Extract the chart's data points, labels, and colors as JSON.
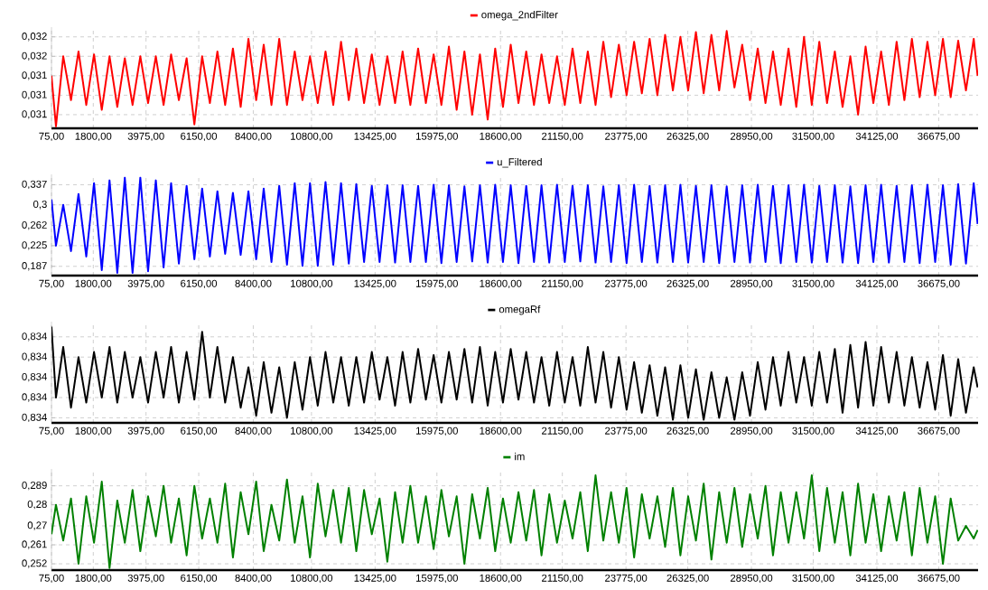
{
  "chart_data": [
    {
      "type": "line",
      "legend": "top",
      "grid": true,
      "x": [
        75,
        260,
        560,
        880,
        1190,
        1510,
        1830,
        2150,
        2470,
        2790,
        3100,
        3420,
        3740,
        4060,
        4380,
        4700,
        5010,
        5330,
        5650,
        5970,
        6290,
        6610,
        6920,
        7240,
        7560,
        7880,
        8200,
        8520,
        8830,
        9150,
        9470,
        9790,
        10110,
        10430,
        10740,
        11060,
        11380,
        11700,
        12020,
        12340,
        12650,
        12970,
        13290,
        13610,
        13930,
        14250,
        14560,
        14880,
        15200,
        15520,
        15840,
        16160,
        16470,
        16790,
        17110,
        17430,
        17750,
        18070,
        18380,
        18700,
        19020,
        19340,
        19660,
        19980,
        20290,
        20610,
        20930,
        21250,
        21570,
        21890,
        22200,
        22520,
        22840,
        23160,
        23480,
        23800,
        24110,
        24430,
        24750,
        25070,
        25390,
        25710,
        26020,
        26340,
        26660,
        26980,
        27300,
        27620,
        27930,
        28250,
        28570,
        28890,
        29210,
        29530,
        29840,
        30160,
        30480,
        30800,
        31120,
        31440,
        31750,
        32070,
        32390,
        32710,
        33030,
        33350,
        33660,
        33980,
        34300,
        34620,
        34940,
        35260,
        35570,
        35890,
        36210,
        36530,
        36850,
        37170,
        37480,
        37800,
        38120,
        38280
      ],
      "xlim": [
        75,
        38300
      ],
      "xticks": [
        {
          "value": 75,
          "label": "75,00"
        },
        {
          "value": 1800,
          "label": "1800,00"
        },
        {
          "value": 3975,
          "label": "3975,00"
        },
        {
          "value": 6150,
          "label": "6150,00"
        },
        {
          "value": 8400,
          "label": "8400,00"
        },
        {
          "value": 10800,
          "label": "10800,00"
        },
        {
          "value": 13425,
          "label": "13425,00"
        },
        {
          "value": 15975,
          "label": "15975,00"
        },
        {
          "value": 18600,
          "label": "18600,00"
        },
        {
          "value": 21150,
          "label": "21150,00"
        },
        {
          "value": 23775,
          "label": "23775,00"
        },
        {
          "value": 26325,
          "label": "26325,00"
        },
        {
          "value": 28950,
          "label": "28950,00"
        },
        {
          "value": 31500,
          "label": "31500,00"
        },
        {
          "value": 34125,
          "label": "34125,00"
        },
        {
          "value": 36675,
          "label": "36675,00"
        }
      ],
      "ylim": [
        0.03086,
        0.0319
      ],
      "yticks": [
        {
          "value": 0.031,
          "label": "0,031"
        },
        {
          "value": 0.0312,
          "label": "0,031"
        },
        {
          "value": 0.0314,
          "label": "0,031"
        },
        {
          "value": 0.0316,
          "label": "0,032"
        },
        {
          "value": 0.0318,
          "label": "0,032"
        }
      ],
      "series": [
        {
          "name": "omega_2ndFilter",
          "color": "#ff0000",
          "values": [
            0.0314,
            0.03088,
            0.0316,
            0.03115,
            0.03165,
            0.0311,
            0.03162,
            0.03105,
            0.0316,
            0.03108,
            0.03158,
            0.0311,
            0.0316,
            0.03112,
            0.0316,
            0.0311,
            0.03162,
            0.03115,
            0.03158,
            0.0309,
            0.0316,
            0.03112,
            0.03165,
            0.0311,
            0.03168,
            0.03108,
            0.03178,
            0.03115,
            0.03172,
            0.0311,
            0.03178,
            0.0311,
            0.03165,
            0.03115,
            0.0316,
            0.03112,
            0.03165,
            0.0311,
            0.03175,
            0.03115,
            0.03168,
            0.03112,
            0.03162,
            0.0311,
            0.0316,
            0.03112,
            0.03165,
            0.0311,
            0.03168,
            0.03112,
            0.03162,
            0.0311,
            0.0317,
            0.03105,
            0.03165,
            0.031,
            0.03162,
            0.03095,
            0.03168,
            0.03108,
            0.03172,
            0.03112,
            0.03165,
            0.0311,
            0.03162,
            0.03112,
            0.0316,
            0.0311,
            0.03168,
            0.03112,
            0.03165,
            0.0311,
            0.03175,
            0.03118,
            0.03172,
            0.0312,
            0.03175,
            0.03122,
            0.03178,
            0.0312,
            0.03182,
            0.03125,
            0.0318,
            0.03125,
            0.03185,
            0.03122,
            0.03182,
            0.03125,
            0.03186,
            0.03128,
            0.03172,
            0.03115,
            0.03168,
            0.03112,
            0.03165,
            0.0311,
            0.03168,
            0.03108,
            0.0318,
            0.0311,
            0.03175,
            0.03112,
            0.03165,
            0.03108,
            0.0316,
            0.031,
            0.0317,
            0.03112,
            0.03165,
            0.0311,
            0.03175,
            0.03115,
            0.03178,
            0.03118,
            0.03175,
            0.0312,
            0.03178,
            0.03118,
            0.03176,
            0.03125,
            0.03178,
            0.0314
          ]
        }
      ]
    },
    {
      "type": "line",
      "legend": "top",
      "grid": true,
      "x": [
        75,
        260,
        560,
        880,
        1190,
        1510,
        1830,
        2150,
        2470,
        2790,
        3100,
        3420,
        3740,
        4060,
        4380,
        4700,
        5010,
        5330,
        5650,
        5970,
        6290,
        6610,
        6920,
        7240,
        7560,
        7880,
        8200,
        8520,
        8830,
        9150,
        9470,
        9790,
        10110,
        10430,
        10740,
        11060,
        11380,
        11700,
        12020,
        12340,
        12650,
        12970,
        13290,
        13610,
        13930,
        14250,
        14560,
        14880,
        15200,
        15520,
        15840,
        16160,
        16470,
        16790,
        17110,
        17430,
        17750,
        18070,
        18380,
        18700,
        19020,
        19340,
        19660,
        19980,
        20290,
        20610,
        20930,
        21250,
        21570,
        21890,
        22200,
        22520,
        22840,
        23160,
        23480,
        23800,
        24110,
        24430,
        24750,
        25070,
        25390,
        25710,
        26020,
        26340,
        26660,
        26980,
        27300,
        27620,
        27930,
        28250,
        28570,
        28890,
        29210,
        29530,
        29840,
        30160,
        30480,
        30800,
        31120,
        31440,
        31750,
        32070,
        32390,
        32710,
        33030,
        33350,
        33660,
        33980,
        34300,
        34620,
        34940,
        35260,
        35570,
        35890,
        36210,
        36530,
        36850,
        37170,
        37480,
        37800,
        38120,
        38280
      ],
      "xlim": [
        75,
        38300
      ],
      "xticks": [
        {
          "value": 75,
          "label": "75,00"
        },
        {
          "value": 1800,
          "label": "1800,00"
        },
        {
          "value": 3975,
          "label": "3975,00"
        },
        {
          "value": 6150,
          "label": "6150,00"
        },
        {
          "value": 8400,
          "label": "8400,00"
        },
        {
          "value": 10800,
          "label": "10800,00"
        },
        {
          "value": 13425,
          "label": "13425,00"
        },
        {
          "value": 15975,
          "label": "15975,00"
        },
        {
          "value": 18600,
          "label": "18600,00"
        },
        {
          "value": 21150,
          "label": "21150,00"
        },
        {
          "value": 23775,
          "label": "23775,00"
        },
        {
          "value": 26325,
          "label": "26325,00"
        },
        {
          "value": 28950,
          "label": "28950,00"
        },
        {
          "value": 31500,
          "label": "31500,00"
        },
        {
          "value": 34125,
          "label": "34125,00"
        },
        {
          "value": 36675,
          "label": "36675,00"
        }
      ],
      "ylim": [
        0.17,
        0.356
      ],
      "yticks": [
        {
          "value": 0.187,
          "label": "0,187"
        },
        {
          "value": 0.225,
          "label": "0,225"
        },
        {
          "value": 0.262,
          "label": "0,262"
        },
        {
          "value": 0.3,
          "label": "0,3"
        },
        {
          "value": 0.337,
          "label": "0,337"
        }
      ],
      "series": [
        {
          "name": "u_Filtered",
          "color": "#0000ff",
          "values": [
            0.31,
            0.225,
            0.3,
            0.215,
            0.32,
            0.205,
            0.34,
            0.18,
            0.345,
            0.175,
            0.35,
            0.175,
            0.35,
            0.178,
            0.345,
            0.185,
            0.34,
            0.192,
            0.335,
            0.2,
            0.33,
            0.205,
            0.325,
            0.21,
            0.322,
            0.208,
            0.325,
            0.2,
            0.33,
            0.195,
            0.335,
            0.19,
            0.34,
            0.188,
            0.34,
            0.188,
            0.342,
            0.19,
            0.34,
            0.192,
            0.338,
            0.195,
            0.335,
            0.195,
            0.336,
            0.194,
            0.336,
            0.195,
            0.335,
            0.195,
            0.337,
            0.193,
            0.336,
            0.195,
            0.334,
            0.196,
            0.336,
            0.194,
            0.337,
            0.195,
            0.336,
            0.193,
            0.335,
            0.195,
            0.336,
            0.194,
            0.337,
            0.195,
            0.335,
            0.196,
            0.336,
            0.194,
            0.334,
            0.195,
            0.336,
            0.193,
            0.337,
            0.195,
            0.335,
            0.194,
            0.336,
            0.195,
            0.337,
            0.194,
            0.335,
            0.195,
            0.336,
            0.193,
            0.334,
            0.195,
            0.336,
            0.194,
            0.337,
            0.195,
            0.335,
            0.193,
            0.336,
            0.195,
            0.337,
            0.194,
            0.335,
            0.195,
            0.336,
            0.194,
            0.334,
            0.193,
            0.336,
            0.195,
            0.337,
            0.194,
            0.335,
            0.195,
            0.336,
            0.193,
            0.337,
            0.195,
            0.336,
            0.19,
            0.338,
            0.192,
            0.34,
            0.265
          ]
        }
      ]
    },
    {
      "type": "line",
      "legend": "top",
      "grid": true,
      "x": [
        75,
        260,
        560,
        880,
        1190,
        1510,
        1830,
        2150,
        2470,
        2790,
        3100,
        3420,
        3740,
        4060,
        4380,
        4700,
        5010,
        5330,
        5650,
        5970,
        6290,
        6610,
        6920,
        7240,
        7560,
        7880,
        8200,
        8520,
        8830,
        9150,
        9470,
        9790,
        10110,
        10430,
        10740,
        11060,
        11380,
        11700,
        12020,
        12340,
        12650,
        12970,
        13290,
        13610,
        13930,
        14250,
        14560,
        14880,
        15200,
        15520,
        15840,
        16160,
        16470,
        16790,
        17110,
        17430,
        17750,
        18070,
        18380,
        18700,
        19020,
        19340,
        19660,
        19980,
        20290,
        20610,
        20930,
        21250,
        21570,
        21890,
        22200,
        22520,
        22840,
        23160,
        23480,
        23800,
        24110,
        24430,
        24750,
        25070,
        25390,
        25710,
        26020,
        26340,
        26660,
        26980,
        27300,
        27620,
        27930,
        28250,
        28570,
        28890,
        29210,
        29530,
        29840,
        30160,
        30480,
        30800,
        31120,
        31440,
        31750,
        32070,
        32390,
        32710,
        33030,
        33350,
        33660,
        33980,
        34300,
        34620,
        34940,
        35260,
        35570,
        35890,
        36210,
        36530,
        36850,
        37170,
        37480,
        37800,
        38120,
        38280
      ],
      "xlim": [
        75,
        38300
      ],
      "xticks": [
        {
          "value": 75,
          "label": "75,00"
        },
        {
          "value": 1800,
          "label": "1800,00"
        },
        {
          "value": 3975,
          "label": "3975,00"
        },
        {
          "value": 6150,
          "label": "6150,00"
        },
        {
          "value": 8400,
          "label": "8400,00"
        },
        {
          "value": 10800,
          "label": "10800,00"
        },
        {
          "value": 13425,
          "label": "13425,00"
        },
        {
          "value": 15975,
          "label": "15975,00"
        },
        {
          "value": 18600,
          "label": "18600,00"
        },
        {
          "value": 21150,
          "label": "21150,00"
        },
        {
          "value": 23775,
          "label": "23775,00"
        },
        {
          "value": 26325,
          "label": "26325,00"
        },
        {
          "value": 28950,
          "label": "28950,00"
        },
        {
          "value": 31500,
          "label": "31500,00"
        },
        {
          "value": 34125,
          "label": "34125,00"
        },
        {
          "value": 36675,
          "label": "36675,00"
        }
      ],
      "ylim": [
        0.83355,
        0.83455
      ],
      "yticks": [
        {
          "value": 0.8336,
          "label": "0,834"
        },
        {
          "value": 0.8338,
          "label": "0,834"
        },
        {
          "value": 0.834,
          "label": "0,834"
        },
        {
          "value": 0.8342,
          "label": "0,834"
        },
        {
          "value": 0.8344,
          "label": "0,834"
        }
      ],
      "series": [
        {
          "name": "omegaRf",
          "color": "#000000",
          "values": [
            0.8345,
            0.8338,
            0.8343,
            0.8337,
            0.8342,
            0.83375,
            0.83425,
            0.8338,
            0.8343,
            0.83375,
            0.83425,
            0.8338,
            0.8342,
            0.83375,
            0.83425,
            0.8338,
            0.8343,
            0.83375,
            0.83425,
            0.83378,
            0.83445,
            0.8338,
            0.8343,
            0.83375,
            0.8342,
            0.8337,
            0.8341,
            0.83362,
            0.83415,
            0.83365,
            0.8341,
            0.8336,
            0.83415,
            0.83368,
            0.8342,
            0.83372,
            0.83425,
            0.83375,
            0.8342,
            0.83372,
            0.8342,
            0.83375,
            0.83425,
            0.83378,
            0.8342,
            0.83372,
            0.83425,
            0.83375,
            0.83428,
            0.83378,
            0.83422,
            0.83375,
            0.83425,
            0.83378,
            0.83428,
            0.83375,
            0.8343,
            0.83372,
            0.83425,
            0.83375,
            0.83428,
            0.83378,
            0.83425,
            0.83375,
            0.8342,
            0.83372,
            0.83425,
            0.83375,
            0.8342,
            0.83372,
            0.8343,
            0.83375,
            0.83425,
            0.8337,
            0.8342,
            0.83368,
            0.83415,
            0.83365,
            0.83412,
            0.83362,
            0.8341,
            0.83358,
            0.83412,
            0.8336,
            0.83408,
            0.83358,
            0.83405,
            0.8336,
            0.834,
            0.83358,
            0.83405,
            0.83362,
            0.83415,
            0.83368,
            0.8342,
            0.83372,
            0.83425,
            0.83375,
            0.8342,
            0.83372,
            0.83425,
            0.83375,
            0.83428,
            0.83365,
            0.83432,
            0.8337,
            0.83435,
            0.83372,
            0.8343,
            0.83375,
            0.83425,
            0.83372,
            0.8342,
            0.8337,
            0.83415,
            0.83368,
            0.83422,
            0.83362,
            0.83418,
            0.83365,
            0.8341,
            0.8339
          ]
        }
      ]
    },
    {
      "type": "line",
      "legend": "top",
      "grid": true,
      "x": [
        75,
        260,
        560,
        880,
        1190,
        1510,
        1830,
        2150,
        2470,
        2790,
        3100,
        3420,
        3740,
        4060,
        4380,
        4700,
        5010,
        5330,
        5650,
        5970,
        6290,
        6610,
        6920,
        7240,
        7560,
        7880,
        8200,
        8520,
        8830,
        9150,
        9470,
        9790,
        10110,
        10430,
        10740,
        11060,
        11380,
        11700,
        12020,
        12340,
        12650,
        12970,
        13290,
        13610,
        13930,
        14250,
        14560,
        14880,
        15200,
        15520,
        15840,
        16160,
        16470,
        16790,
        17110,
        17430,
        17750,
        18070,
        18380,
        18700,
        19020,
        19340,
        19660,
        19980,
        20290,
        20610,
        20930,
        21250,
        21570,
        21890,
        22200,
        22520,
        22840,
        23160,
        23480,
        23800,
        24110,
        24430,
        24750,
        25070,
        25390,
        25710,
        26020,
        26340,
        26660,
        26980,
        27300,
        27620,
        27930,
        28250,
        28570,
        28890,
        29210,
        29530,
        29840,
        30160,
        30480,
        30800,
        31120,
        31440,
        31750,
        32070,
        32390,
        32710,
        33030,
        33350,
        33660,
        33980,
        34300,
        34620,
        34940,
        35260,
        35570,
        35890,
        36210,
        36530,
        36850,
        37170,
        37480,
        37800,
        38120,
        38280
      ],
      "xlim": [
        75,
        38300
      ],
      "xticks": [
        {
          "value": 75,
          "label": "75,00"
        },
        {
          "value": 1800,
          "label": "1800,00"
        },
        {
          "value": 3975,
          "label": "3975,00"
        },
        {
          "value": 6150,
          "label": "6150,00"
        },
        {
          "value": 8400,
          "label": "8400,00"
        },
        {
          "value": 10800,
          "label": "10800,00"
        },
        {
          "value": 13425,
          "label": "13425,00"
        },
        {
          "value": 15975,
          "label": "15975,00"
        },
        {
          "value": 18600,
          "label": "18600,00"
        },
        {
          "value": 21150,
          "label": "21150,00"
        },
        {
          "value": 23775,
          "label": "23775,00"
        },
        {
          "value": 26325,
          "label": "26325,00"
        },
        {
          "value": 28950,
          "label": "28950,00"
        },
        {
          "value": 31500,
          "label": "31500,00"
        },
        {
          "value": 34125,
          "label": "34125,00"
        },
        {
          "value": 36675,
          "label": "36675,00"
        }
      ],
      "ylim": [
        0.249,
        0.297
      ],
      "yticks": [
        {
          "value": 0.252,
          "label": "0,252"
        },
        {
          "value": 0.261,
          "label": "0,261"
        },
        {
          "value": 0.27,
          "label": "0,27"
        },
        {
          "value": 0.28,
          "label": "0,28"
        },
        {
          "value": 0.289,
          "label": "0,289"
        }
      ],
      "series": [
        {
          "name": "im",
          "color": "#008000",
          "values": [
            0.266,
            0.28,
            0.263,
            0.283,
            0.252,
            0.284,
            0.262,
            0.291,
            0.25,
            0.282,
            0.262,
            0.287,
            0.258,
            0.284,
            0.265,
            0.289,
            0.262,
            0.283,
            0.256,
            0.289,
            0.264,
            0.283,
            0.262,
            0.29,
            0.255,
            0.286,
            0.266,
            0.291,
            0.258,
            0.28,
            0.263,
            0.292,
            0.262,
            0.284,
            0.255,
            0.29,
            0.265,
            0.287,
            0.262,
            0.288,
            0.258,
            0.287,
            0.266,
            0.283,
            0.253,
            0.286,
            0.262,
            0.289,
            0.262,
            0.284,
            0.259,
            0.287,
            0.265,
            0.284,
            0.252,
            0.285,
            0.264,
            0.288,
            0.258,
            0.283,
            0.262,
            0.286,
            0.263,
            0.287,
            0.256,
            0.285,
            0.262,
            0.282,
            0.264,
            0.286,
            0.258,
            0.294,
            0.263,
            0.286,
            0.262,
            0.288,
            0.255,
            0.285,
            0.264,
            0.284,
            0.26,
            0.288,
            0.256,
            0.284,
            0.263,
            0.29,
            0.254,
            0.286,
            0.262,
            0.288,
            0.26,
            0.285,
            0.264,
            0.289,
            0.256,
            0.286,
            0.262,
            0.286,
            0.264,
            0.294,
            0.258,
            0.288,
            0.262,
            0.286,
            0.256,
            0.29,
            0.262,
            0.285,
            0.258,
            0.284,
            0.263,
            0.286,
            0.256,
            0.288,
            0.262,
            0.284,
            0.252,
            0.283,
            0.263,
            0.27,
            0.264,
            0.268
          ]
        }
      ]
    }
  ]
}
